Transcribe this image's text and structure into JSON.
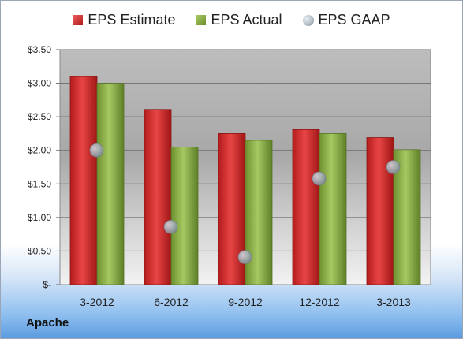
{
  "chart_data": {
    "type": "bar",
    "categories": [
      "3-2012",
      "6-2012",
      "9-2012",
      "12-2012",
      "3-2013"
    ],
    "series": [
      {
        "name": "EPS Estimate",
        "values": [
          3.1,
          2.61,
          2.25,
          2.31,
          2.19
        ],
        "color": "#d42a2a"
      },
      {
        "name": "EPS Actual",
        "values": [
          3.0,
          2.05,
          2.15,
          2.25,
          2.01
        ],
        "color": "#8db04a"
      }
    ],
    "gaap": {
      "name": "EPS GAAP",
      "values": [
        2.0,
        0.86,
        0.41,
        1.58,
        1.75
      ],
      "color": "#9aa6b2"
    },
    "y_ticks": [
      "$-",
      "$0.50",
      "$1.00",
      "$1.50",
      "$2.00",
      "$2.50",
      "$3.00",
      "$3.50"
    ],
    "ylim": [
      0,
      3.5
    ],
    "legend_position": "top",
    "grid": true
  },
  "company": "Apache"
}
